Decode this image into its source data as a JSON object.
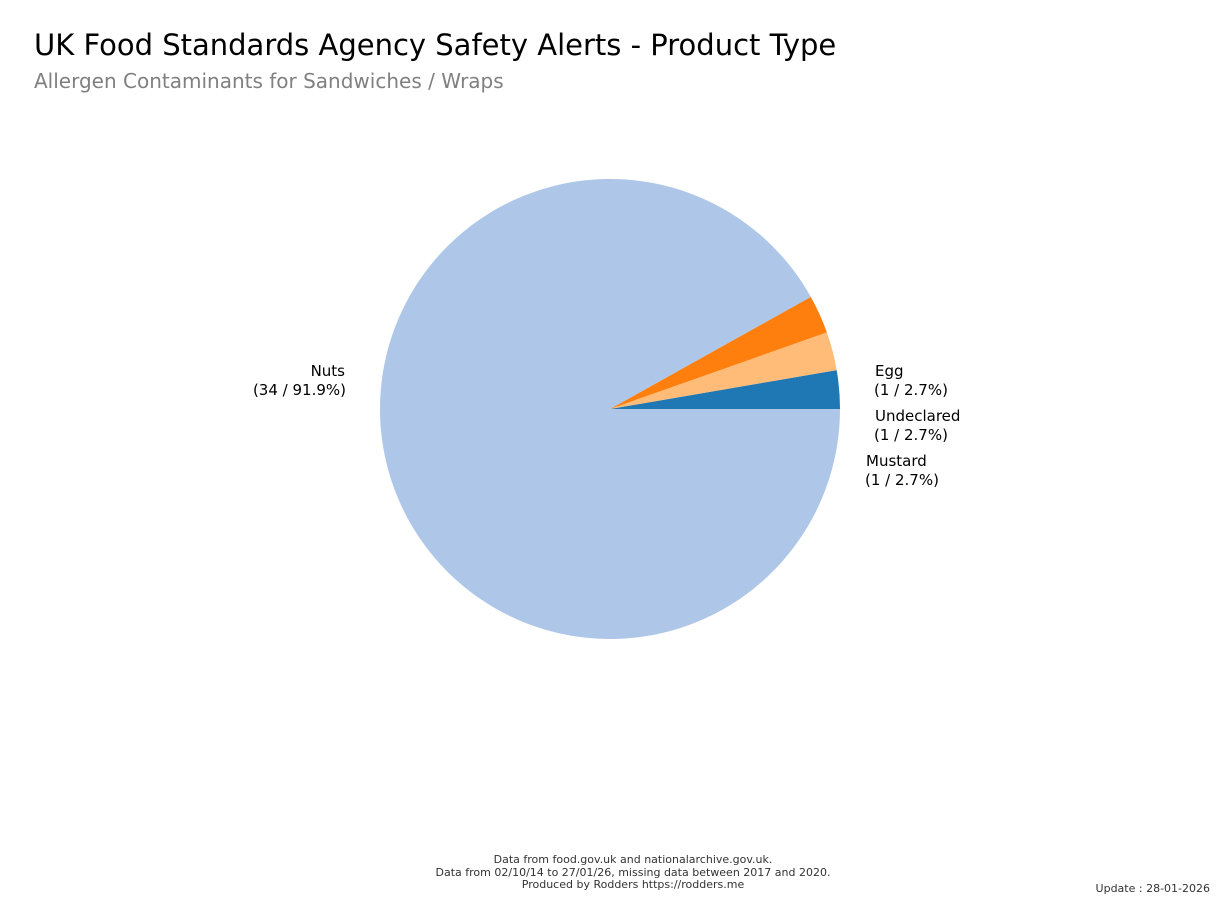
{
  "chart_data": {
    "type": "pie",
    "title": "UK Food Standards Agency Safety Alerts - Product Type",
    "subtitle": "Allergen Contaminants for Sandwiches / Wraps",
    "slices": [
      {
        "label": "Egg",
        "value": 1,
        "percent": 2.7,
        "display": "(1 / 2.7%)",
        "color": "#1f77b4"
      },
      {
        "label": "Undeclared",
        "value": 1,
        "percent": 2.7,
        "display": "(1 / 2.7%)",
        "color": "#ffbb78"
      },
      {
        "label": "Mustard",
        "value": 1,
        "percent": 2.7,
        "display": "(1 / 2.7%)",
        "color": "#ff7f0e"
      },
      {
        "label": "Nuts",
        "value": 34,
        "percent": 91.9,
        "display": "(34 / 91.9%)",
        "color": "#aec7e8"
      }
    ],
    "legend": "none"
  },
  "footer": {
    "line1": "Data from food.gov.uk and nationalarchive.gov.uk.",
    "line2": "Data from 02/10/14 to 27/01/26, missing data between 2017 and 2020.",
    "line3": "Produced by Rodders https://rodders.me",
    "update": "Update : 28-01-2026"
  }
}
